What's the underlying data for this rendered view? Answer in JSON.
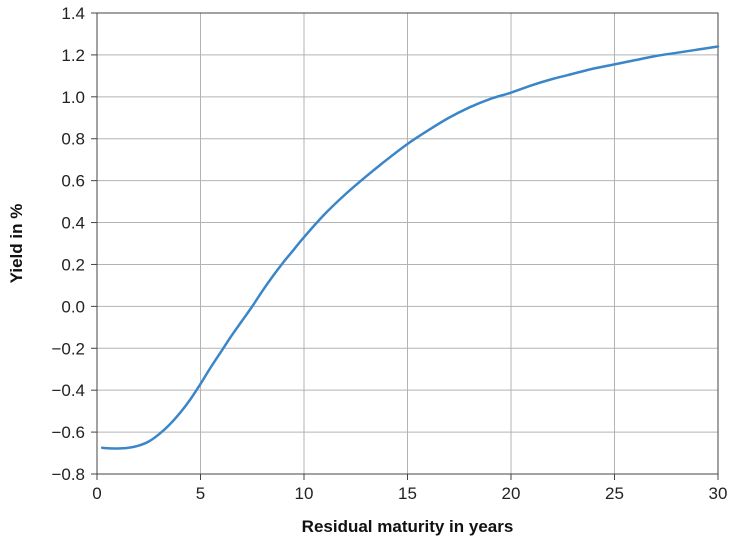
{
  "chart_data": {
    "type": "line",
    "title": "",
    "xlabel": "Residual maturity in years",
    "ylabel": "Yield in %",
    "xlim": [
      0,
      30
    ],
    "ylim": [
      -0.8,
      1.4
    ],
    "x_ticks": [
      0,
      5,
      10,
      15,
      20,
      25,
      30
    ],
    "x_tick_labels": [
      "0",
      "5",
      "10",
      "15",
      "20",
      "25",
      "30"
    ],
    "y_ticks": [
      -0.8,
      -0.6,
      -0.4,
      -0.2,
      0.0,
      0.2,
      0.4,
      0.6,
      0.8,
      1.0,
      1.2,
      1.4
    ],
    "y_tick_labels": [
      "−0.8",
      "−0.6",
      "−0.4",
      "−0.2",
      "0.0",
      "0.2",
      "0.4",
      "0.6",
      "0.8",
      "1.0",
      "1.2",
      "1.4"
    ],
    "grid": true,
    "line_color": "#3a86c8",
    "series": [
      {
        "x": [
          0.25,
          0.5,
          1,
          1.5,
          2,
          2.5,
          3,
          3.5,
          4,
          4.5,
          5,
          5.5,
          6,
          6.5,
          7,
          7.5,
          8,
          8.5,
          9,
          9.5,
          10,
          11,
          12,
          13,
          14,
          15,
          16,
          17,
          18,
          19,
          20,
          21,
          22,
          23,
          24,
          25,
          26,
          27,
          28,
          29,
          30
        ],
        "values": [
          -0.675,
          -0.677,
          -0.678,
          -0.675,
          -0.665,
          -0.645,
          -0.61,
          -0.565,
          -0.51,
          -0.445,
          -0.37,
          -0.29,
          -0.215,
          -0.14,
          -0.07,
          0.0,
          0.075,
          0.145,
          0.21,
          0.27,
          0.33,
          0.44,
          0.535,
          0.62,
          0.7,
          0.775,
          0.84,
          0.9,
          0.95,
          0.99,
          1.02,
          1.055,
          1.085,
          1.11,
          1.135,
          1.155,
          1.175,
          1.195,
          1.21,
          1.225,
          1.24
        ]
      }
    ]
  }
}
